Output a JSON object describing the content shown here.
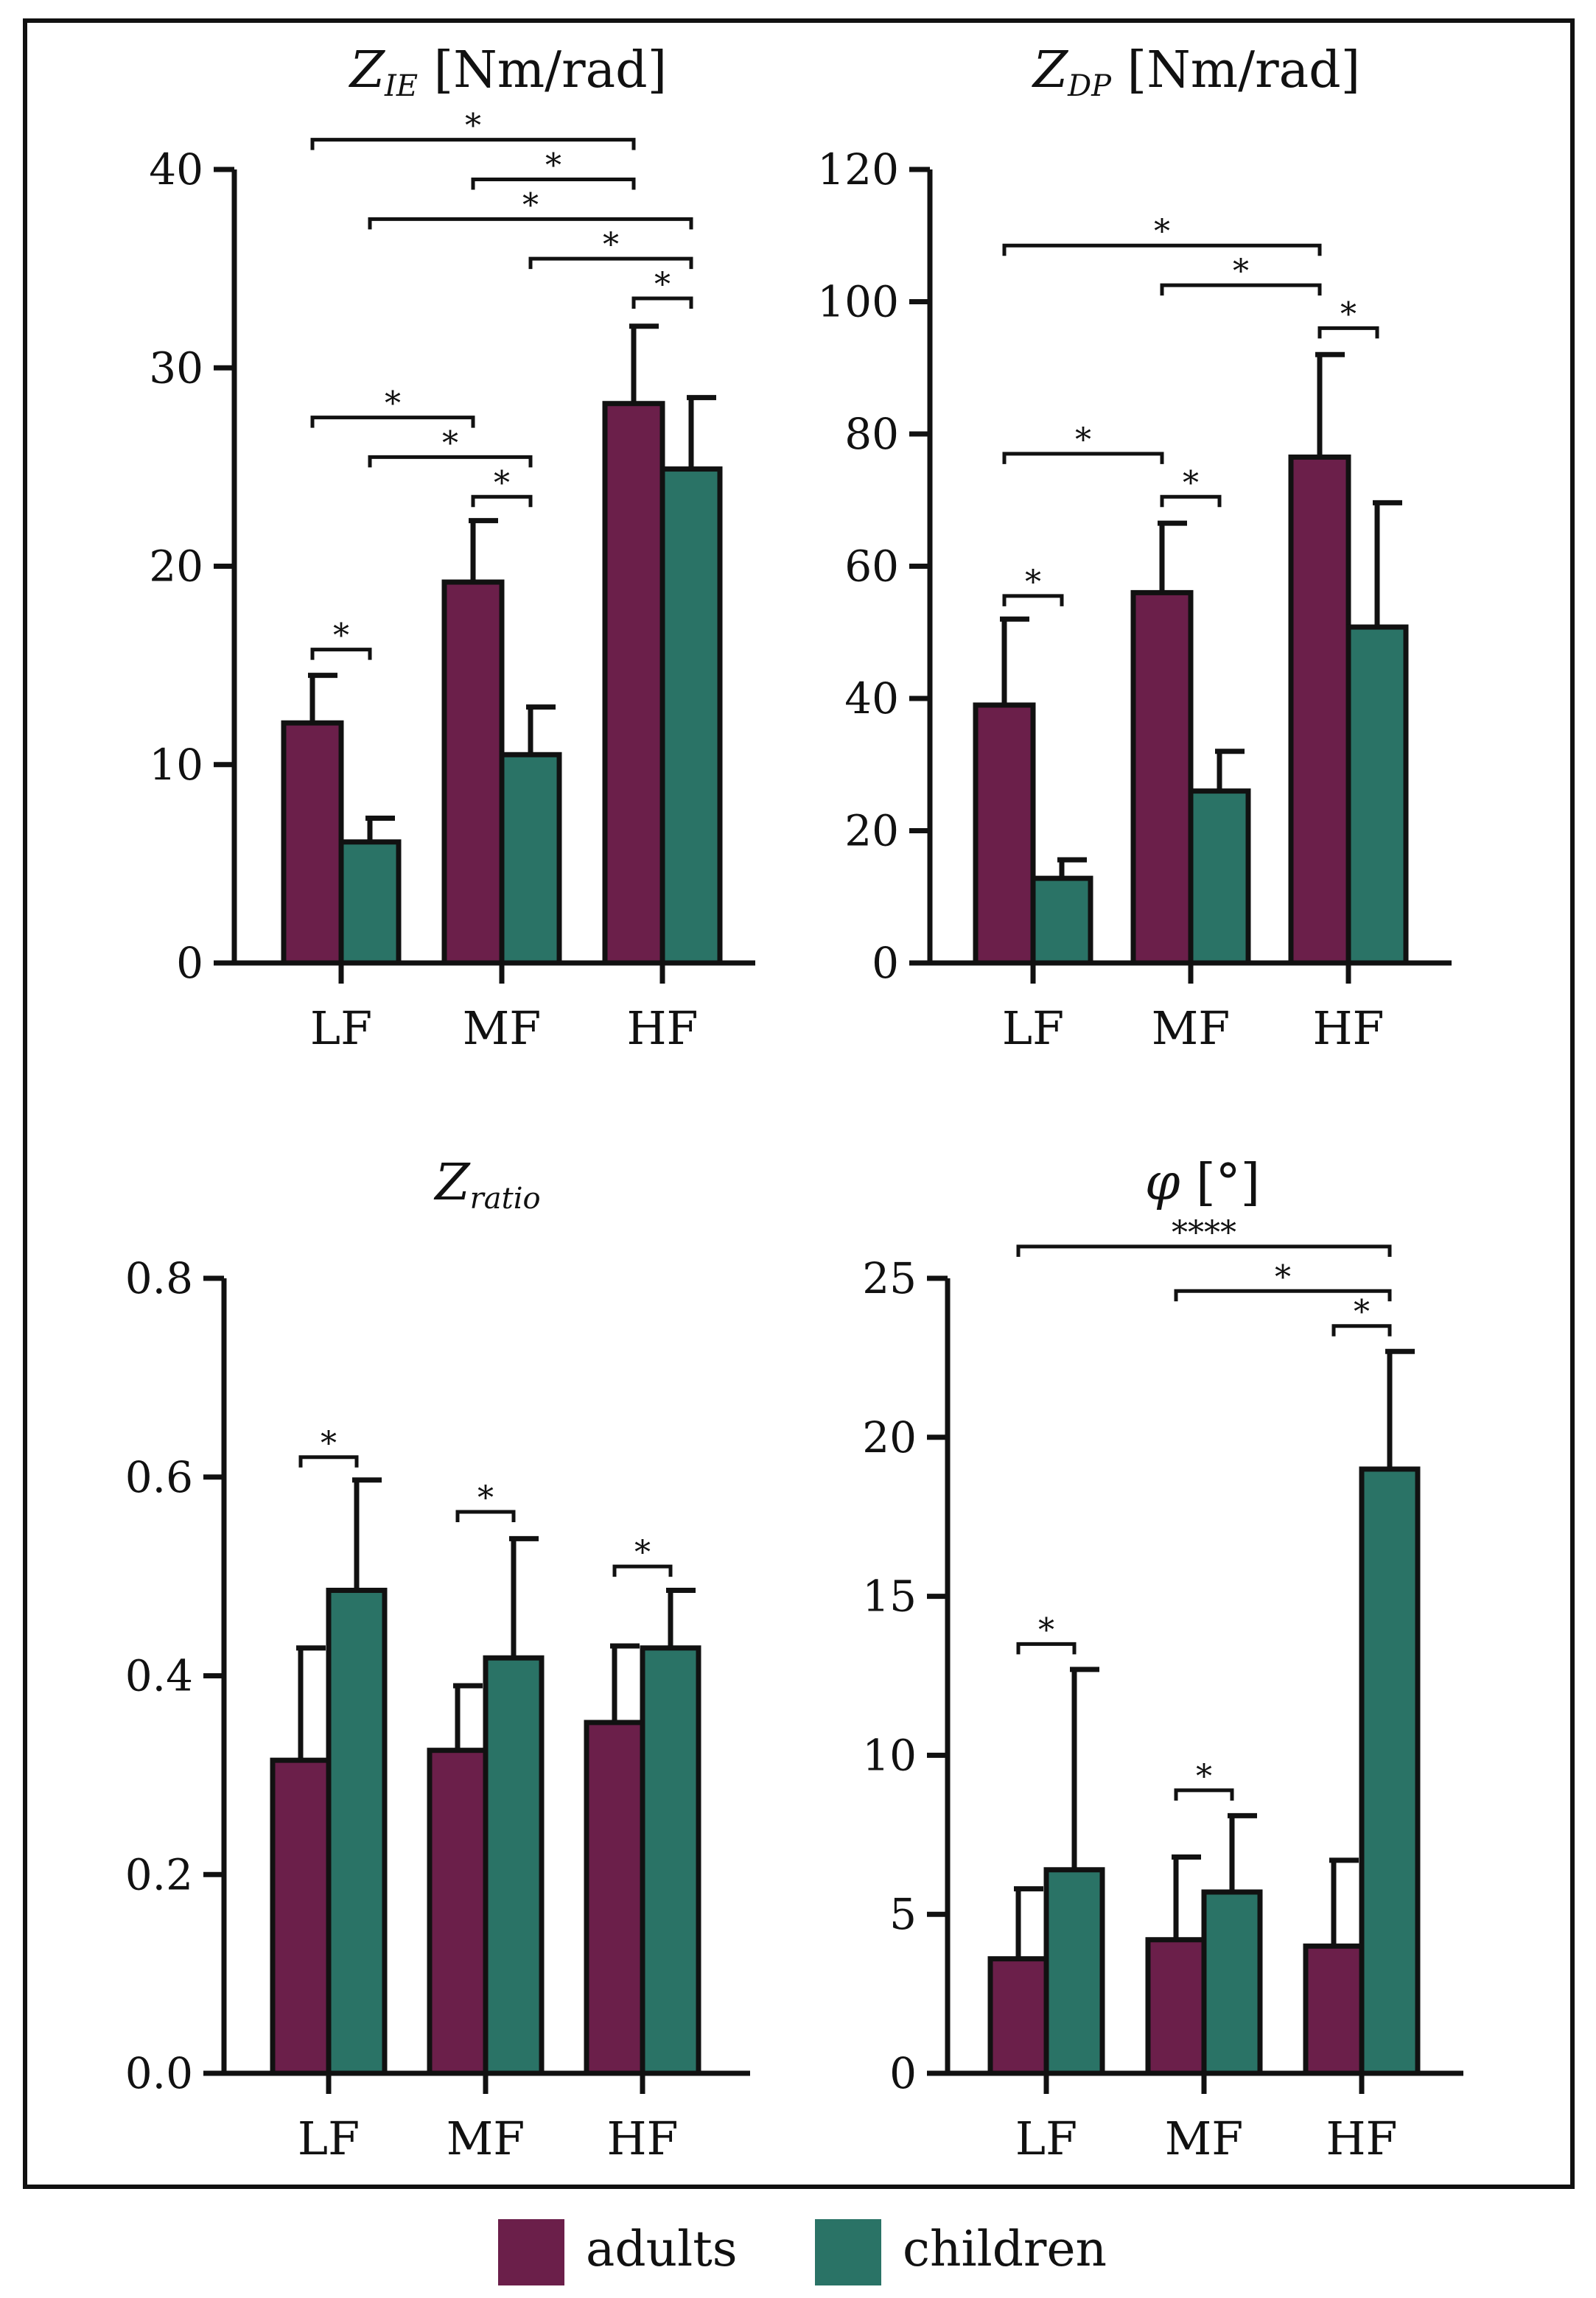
{
  "colors": {
    "adults": "#6b1f4a",
    "children": "#2a7366",
    "axis": "#111111",
    "frame": "#111111"
  },
  "legend": {
    "items": [
      {
        "label": "adults",
        "color": "#6b1f4a"
      },
      {
        "label": "children",
        "color": "#2a7366"
      }
    ]
  },
  "chart_data": [
    {
      "type": "bar",
      "title": {
        "main": "Z",
        "sub": "IE",
        "rest": " [Nm/rad]"
      },
      "categories": [
        "LF",
        "MF",
        "HF"
      ],
      "ylim": [
        0,
        40
      ],
      "yticks": [
        0,
        10,
        20,
        30,
        40
      ],
      "tick_decimals": 0,
      "series": [
        {
          "name": "adults",
          "values": [
            12.1,
            19.2,
            28.2
          ],
          "errors": [
            2.4,
            3.1,
            3.9
          ]
        },
        {
          "name": "children",
          "values": [
            6.1,
            10.5,
            24.9
          ],
          "errors": [
            1.2,
            2.4,
            3.6
          ]
        }
      ],
      "significance": [
        {
          "from": [
            0,
            0
          ],
          "to": [
            2,
            0
          ],
          "y": 41.5,
          "label": "*"
        },
        {
          "from": [
            1,
            0
          ],
          "to": [
            2,
            0
          ],
          "y": 39.5,
          "label": "*"
        },
        {
          "from": [
            0,
            1
          ],
          "to": [
            2,
            1
          ],
          "y": 37.5,
          "label": "*"
        },
        {
          "from": [
            1,
            1
          ],
          "to": [
            2,
            1
          ],
          "y": 35.5,
          "label": "*"
        },
        {
          "from": [
            2,
            0
          ],
          "to": [
            2,
            1
          ],
          "y": 33.5,
          "label": "*"
        },
        {
          "from": [
            0,
            0
          ],
          "to": [
            1,
            0
          ],
          "y": 27.5,
          "label": "*"
        },
        {
          "from": [
            0,
            1
          ],
          "to": [
            1,
            1
          ],
          "y": 25.5,
          "label": "*"
        },
        {
          "from": [
            1,
            0
          ],
          "to": [
            1,
            1
          ],
          "y": 23.5,
          "label": "*"
        },
        {
          "from": [
            0,
            0
          ],
          "to": [
            0,
            1
          ],
          "y": 15.8,
          "label": "*"
        }
      ]
    },
    {
      "type": "bar",
      "title": {
        "main": "Z",
        "sub": "DP",
        "rest": " [Nm/rad]"
      },
      "categories": [
        "LF",
        "MF",
        "HF"
      ],
      "ylim": [
        0,
        120
      ],
      "yticks": [
        0,
        20,
        40,
        60,
        80,
        100,
        120
      ],
      "tick_decimals": 0,
      "series": [
        {
          "name": "adults",
          "values": [
            39,
            56,
            76.5
          ],
          "errors": [
            13,
            10.5,
            15.5
          ]
        },
        {
          "name": "children",
          "values": [
            12.8,
            26,
            50.8
          ],
          "errors": [
            2.8,
            6,
            18.8
          ]
        }
      ],
      "significance": [
        {
          "from": [
            0,
            0
          ],
          "to": [
            2,
            0
          ],
          "y": 108.5,
          "label": "*"
        },
        {
          "from": [
            1,
            0
          ],
          "to": [
            2,
            0
          ],
          "y": 102.5,
          "label": "*"
        },
        {
          "from": [
            2,
            0
          ],
          "to": [
            2,
            1
          ],
          "y": 96,
          "label": "*"
        },
        {
          "from": [
            0,
            0
          ],
          "to": [
            1,
            0
          ],
          "y": 77,
          "label": "*"
        },
        {
          "from": [
            1,
            0
          ],
          "to": [
            1,
            1
          ],
          "y": 70.5,
          "label": "*"
        },
        {
          "from": [
            0,
            0
          ],
          "to": [
            0,
            1
          ],
          "y": 55.5,
          "label": "*"
        }
      ]
    },
    {
      "type": "bar",
      "title": {
        "main": "Z",
        "sub": "ratio",
        "rest": ""
      },
      "categories": [
        "LF",
        "MF",
        "HF"
      ],
      "ylim": [
        0,
        0.8
      ],
      "yticks": [
        0,
        0.2,
        0.4,
        0.6,
        0.8
      ],
      "tick_decimals": 1,
      "series": [
        {
          "name": "adults",
          "values": [
            0.315,
            0.325,
            0.353
          ],
          "errors": [
            0.113,
            0.065,
            0.077
          ]
        },
        {
          "name": "children",
          "values": [
            0.486,
            0.418,
            0.428
          ],
          "errors": [
            0.111,
            0.12,
            0.058
          ]
        }
      ],
      "significance": [
        {
          "from": [
            0,
            0
          ],
          "to": [
            0,
            1
          ],
          "y": 0.62,
          "label": "*"
        },
        {
          "from": [
            1,
            0
          ],
          "to": [
            1,
            1
          ],
          "y": 0.565,
          "label": "*"
        },
        {
          "from": [
            2,
            0
          ],
          "to": [
            2,
            1
          ],
          "y": 0.51,
          "label": "*"
        }
      ]
    },
    {
      "type": "bar",
      "title": {
        "main": "φ",
        "sub": "",
        "rest": " [°]"
      },
      "categories": [
        "LF",
        "MF",
        "HF"
      ],
      "ylim": [
        0,
        25
      ],
      "yticks": [
        0,
        5,
        10,
        15,
        20,
        25
      ],
      "tick_decimals": 0,
      "series": [
        {
          "name": "adults",
          "values": [
            3.6,
            4.2,
            4.0
          ],
          "errors": [
            2.2,
            2.6,
            2.7
          ]
        },
        {
          "name": "children",
          "values": [
            6.4,
            5.7,
            19.0
          ],
          "errors": [
            6.3,
            2.4,
            3.7
          ]
        }
      ],
      "significance": [
        {
          "from": [
            0,
            0
          ],
          "to": [
            2,
            1
          ],
          "y": 26.0,
          "label": "****"
        },
        {
          "from": [
            1,
            0
          ],
          "to": [
            2,
            1
          ],
          "y": 24.6,
          "label": "*"
        },
        {
          "from": [
            2,
            0
          ],
          "to": [
            2,
            1
          ],
          "y": 23.5,
          "label": "*"
        },
        {
          "from": [
            0,
            0
          ],
          "to": [
            0,
            1
          ],
          "y": 13.5,
          "label": "*"
        },
        {
          "from": [
            1,
            0
          ],
          "to": [
            1,
            1
          ],
          "y": 8.9,
          "label": "*"
        }
      ]
    }
  ]
}
